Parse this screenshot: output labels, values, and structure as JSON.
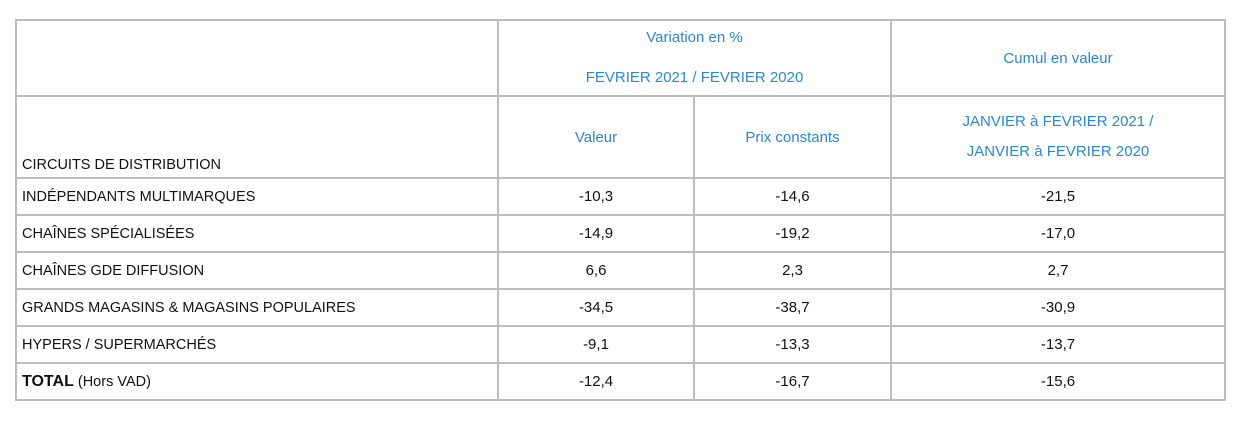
{
  "table": {
    "header": {
      "variation_title": "Variation en %",
      "variation_period": "FEVRIER 2021 / FEVRIER 2020",
      "cumul_title": "Cumul en valeur",
      "row_header": "CIRCUITS DE DISTRIBUTION",
      "col_valeur": "Valeur",
      "col_prix": "Prix constants",
      "cumul_period": [
        "JANVIER à FEVRIER 2021 /",
        "JANVIER à FEVRIER 2020"
      ]
    },
    "rows": [
      {
        "label": "INDÉPENDANTS MULTIMARQUES",
        "values": [
          "-10,3",
          "-14,6",
          "-21,5"
        ]
      },
      {
        "label": "CHAÎNES SPÉCIALISÉES",
        "values": [
          "-14,9",
          "-19,2",
          "-17,0"
        ]
      },
      {
        "label": "CHAÎNES GDE DIFFUSION",
        "values": [
          "6,6",
          "2,3",
          "2,7"
        ]
      },
      {
        "label": "GRANDS MAGASINS & MAGASINS POPULAIRES",
        "values": [
          "-34,5",
          "-38,7",
          "-30,9"
        ]
      },
      {
        "label": "HYPERS / SUPERMARCHÉS",
        "values": [
          "-9,1",
          "-13,3",
          "-13,7"
        ]
      }
    ],
    "total": {
      "label": "TOTAL",
      "note": "(Hors VAD)",
      "values": [
        "-12,4",
        "-16,7",
        "-15,6"
      ]
    }
  }
}
